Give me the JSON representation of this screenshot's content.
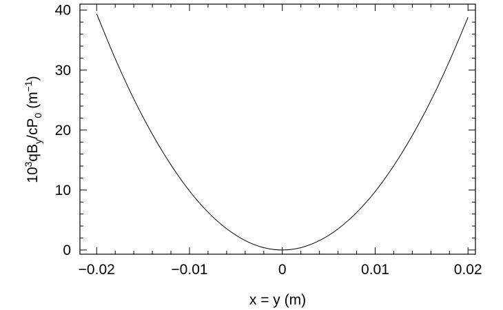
{
  "chart_data": {
    "type": "line",
    "title": "",
    "xlabel": "x = y (m)",
    "ylabel": {
      "base": "10",
      "exp": "3",
      "q_b": "qB",
      "sub_y": "y",
      "div_cp": "/cP",
      "sub_0": "0",
      "unit_open": "(m",
      "unit_exp": "−1",
      "unit_close": ")"
    },
    "xlim": [
      -0.0218,
      0.0208
    ],
    "ylim": [
      -0.7,
      41
    ],
    "x_ticks": [
      -0.02,
      -0.01,
      0,
      0.01,
      0.02
    ],
    "x_tick_labels": [
      "−0.02",
      "−0.01",
      "0",
      "0.01",
      "0.02"
    ],
    "y_ticks": [
      0,
      10,
      20,
      30,
      40
    ],
    "y_tick_labels": [
      "0",
      "10",
      "20",
      "30",
      "40"
    ],
    "grid": false,
    "series": [
      {
        "x": [
          -0.02,
          -0.018,
          -0.016,
          -0.014,
          -0.012,
          -0.01,
          -0.008,
          -0.006,
          -0.004,
          -0.002,
          0,
          0.002,
          0.004,
          0.006,
          0.008,
          0.01,
          0.012,
          0.014,
          0.016,
          0.018,
          0.02
        ],
        "y": [
          39.4,
          31.9,
          25.2,
          19.3,
          14.2,
          9.85,
          6.3,
          3.55,
          1.58,
          0.39,
          0.0,
          0.39,
          1.57,
          3.52,
          6.25,
          9.75,
          14.05,
          19.1,
          24.9,
          31.5,
          38.8
        ]
      }
    ],
    "style": {
      "line_color": "#000000",
      "frame_color": "#000000"
    }
  }
}
